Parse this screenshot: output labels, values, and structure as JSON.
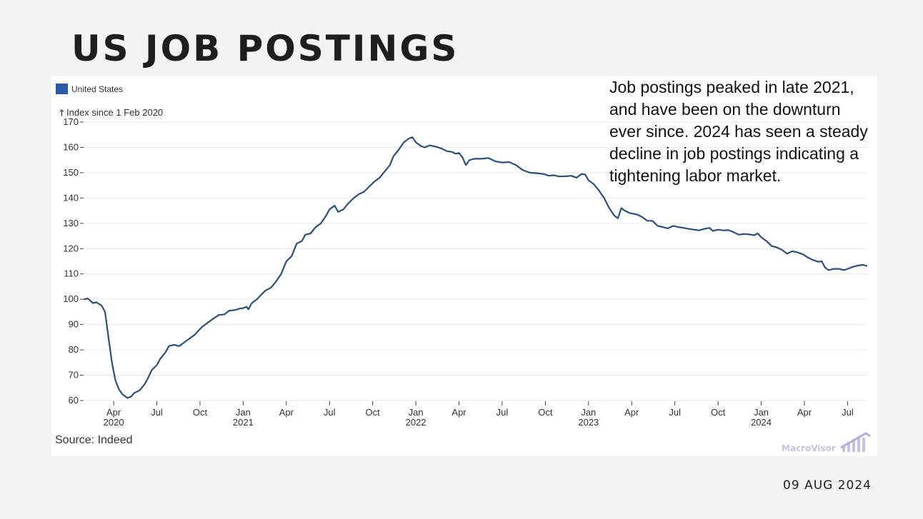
{
  "page": {
    "title": "US JOB POSTINGS",
    "date": "09 AUG 2024",
    "annotation": "Job postings peaked in late 2021, and have been on the downturn ever since. 2024 has seen a steady decline in job postings indicating a tightening labor market.",
    "watermark": "MacroVisor"
  },
  "chart_data": {
    "type": "line",
    "title": "",
    "ylabel": "Index since 1 Feb 2020",
    "xlabel": "",
    "source": "Source: Indeed",
    "legend": {
      "position": "top-left",
      "entries": [
        "United States"
      ]
    },
    "ylim": [
      60,
      170
    ],
    "yticks": [
      60,
      70,
      80,
      90,
      100,
      110,
      120,
      130,
      140,
      150,
      160,
      170
    ],
    "xlim": [
      2020.08,
      2024.61
    ],
    "xticks": [
      {
        "x": 2020.25,
        "label": "Apr",
        "sub": "2020"
      },
      {
        "x": 2020.5,
        "label": "Jul",
        "sub": ""
      },
      {
        "x": 2020.75,
        "label": "Oct",
        "sub": ""
      },
      {
        "x": 2021.0,
        "label": "Jan",
        "sub": "2021"
      },
      {
        "x": 2021.25,
        "label": "Apr",
        "sub": ""
      },
      {
        "x": 2021.5,
        "label": "Jul",
        "sub": ""
      },
      {
        "x": 2021.75,
        "label": "Oct",
        "sub": ""
      },
      {
        "x": 2022.0,
        "label": "Jan",
        "sub": "2022"
      },
      {
        "x": 2022.25,
        "label": "Apr",
        "sub": ""
      },
      {
        "x": 2022.5,
        "label": "Jul",
        "sub": ""
      },
      {
        "x": 2022.75,
        "label": "Oct",
        "sub": ""
      },
      {
        "x": 2023.0,
        "label": "Jan",
        "sub": "2023"
      },
      {
        "x": 2023.25,
        "label": "Apr",
        "sub": ""
      },
      {
        "x": 2023.5,
        "label": "Jul",
        "sub": ""
      },
      {
        "x": 2023.75,
        "label": "Oct",
        "sub": ""
      },
      {
        "x": 2024.0,
        "label": "Jan",
        "sub": "2024"
      },
      {
        "x": 2024.25,
        "label": "Apr",
        "sub": ""
      },
      {
        "x": 2024.5,
        "label": "Jul",
        "sub": ""
      }
    ],
    "grid": true,
    "series": [
      {
        "name": "United States",
        "color": "#2e4f78",
        "points": [
          [
            2020.08,
            100
          ],
          [
            2020.1,
            100.3
          ],
          [
            2020.13,
            98.5
          ],
          [
            2020.15,
            98.8
          ],
          [
            2020.18,
            97.5
          ],
          [
            2020.2,
            95
          ],
          [
            2020.22,
            85
          ],
          [
            2020.24,
            75
          ],
          [
            2020.26,
            68
          ],
          [
            2020.28,
            64.5
          ],
          [
            2020.3,
            62.5
          ],
          [
            2020.33,
            61
          ],
          [
            2020.35,
            61.5
          ],
          [
            2020.37,
            63
          ],
          [
            2020.4,
            64
          ],
          [
            2020.43,
            66.5
          ],
          [
            2020.45,
            69
          ],
          [
            2020.47,
            72
          ],
          [
            2020.5,
            74
          ],
          [
            2020.52,
            76.5
          ],
          [
            2020.55,
            79
          ],
          [
            2020.57,
            81.5
          ],
          [
            2020.6,
            82
          ],
          [
            2020.63,
            81.5
          ],
          [
            2020.65,
            82.5
          ],
          [
            2020.68,
            84
          ],
          [
            2020.72,
            86
          ],
          [
            2020.76,
            89
          ],
          [
            2020.8,
            91
          ],
          [
            2020.83,
            92.5
          ],
          [
            2020.86,
            93.8
          ],
          [
            2020.89,
            94
          ],
          [
            2020.92,
            95.5
          ],
          [
            2020.95,
            95.7
          ],
          [
            2020.98,
            96.3
          ],
          [
            2021.0,
            96.5
          ],
          [
            2021.02,
            97
          ],
          [
            2021.03,
            96
          ],
          [
            2021.05,
            98.5
          ],
          [
            2021.08,
            100
          ],
          [
            2021.1,
            101.5
          ],
          [
            2021.13,
            103.5
          ],
          [
            2021.16,
            104.5
          ],
          [
            2021.19,
            107
          ],
          [
            2021.22,
            110
          ],
          [
            2021.25,
            115
          ],
          [
            2021.28,
            117
          ],
          [
            2021.31,
            122
          ],
          [
            2021.34,
            123
          ],
          [
            2021.36,
            125.5
          ],
          [
            2021.39,
            126
          ],
          [
            2021.42,
            128.5
          ],
          [
            2021.45,
            130
          ],
          [
            2021.48,
            133
          ],
          [
            2021.5,
            135.5
          ],
          [
            2021.53,
            137
          ],
          [
            2021.55,
            134.5
          ],
          [
            2021.58,
            135.5
          ],
          [
            2021.61,
            138
          ],
          [
            2021.64,
            140
          ],
          [
            2021.67,
            141.5
          ],
          [
            2021.7,
            142.5
          ],
          [
            2021.73,
            144.5
          ],
          [
            2021.76,
            146.5
          ],
          [
            2021.79,
            148
          ],
          [
            2021.82,
            150.5
          ],
          [
            2021.85,
            153
          ],
          [
            2021.87,
            156.5
          ],
          [
            2021.9,
            159
          ],
          [
            2021.93,
            162
          ],
          [
            2021.96,
            163.5
          ],
          [
            2021.98,
            164
          ],
          [
            2022.0,
            162
          ],
          [
            2022.03,
            160.5
          ],
          [
            2022.05,
            160
          ],
          [
            2022.08,
            160.8
          ],
          [
            2022.12,
            160.2
          ],
          [
            2022.15,
            159.5
          ],
          [
            2022.18,
            158.5
          ],
          [
            2022.21,
            158.2
          ],
          [
            2022.23,
            157.5
          ],
          [
            2022.25,
            157.8
          ],
          [
            2022.27,
            156
          ],
          [
            2022.29,
            153
          ],
          [
            2022.31,
            155
          ],
          [
            2022.34,
            155.5
          ],
          [
            2022.38,
            155.5
          ],
          [
            2022.42,
            155.8
          ],
          [
            2022.46,
            154.5
          ],
          [
            2022.5,
            154
          ],
          [
            2022.54,
            154.2
          ],
          [
            2022.58,
            153
          ],
          [
            2022.62,
            151
          ],
          [
            2022.66,
            150
          ],
          [
            2022.7,
            149.8
          ],
          [
            2022.74,
            149.5
          ],
          [
            2022.77,
            148.8
          ],
          [
            2022.8,
            149
          ],
          [
            2022.83,
            148.5
          ],
          [
            2022.87,
            148.6
          ],
          [
            2022.9,
            148.8
          ],
          [
            2022.93,
            148
          ],
          [
            2022.96,
            149.5
          ],
          [
            2022.98,
            149.3
          ],
          [
            2023.0,
            147
          ],
          [
            2023.03,
            145.5
          ],
          [
            2023.06,
            143
          ],
          [
            2023.09,
            140
          ],
          [
            2023.12,
            136
          ],
          [
            2023.15,
            133
          ],
          [
            2023.17,
            132
          ],
          [
            2023.19,
            136
          ],
          [
            2023.21,
            135
          ],
          [
            2023.24,
            134
          ],
          [
            2023.28,
            133.5
          ],
          [
            2023.31,
            132.5
          ],
          [
            2023.34,
            131
          ],
          [
            2023.37,
            131
          ],
          [
            2023.4,
            129
          ],
          [
            2023.43,
            128.5
          ],
          [
            2023.46,
            128
          ],
          [
            2023.49,
            129
          ],
          [
            2023.52,
            128.5
          ],
          [
            2023.55,
            128.2
          ],
          [
            2023.58,
            127.8
          ],
          [
            2023.61,
            127.5
          ],
          [
            2023.64,
            127.2
          ],
          [
            2023.67,
            127.8
          ],
          [
            2023.7,
            128.2
          ],
          [
            2023.72,
            127
          ],
          [
            2023.75,
            127.5
          ],
          [
            2023.78,
            127.2
          ],
          [
            2023.81,
            127.3
          ],
          [
            2023.84,
            126.5
          ],
          [
            2023.87,
            125.5
          ],
          [
            2023.9,
            125.8
          ],
          [
            2023.93,
            125.6
          ],
          [
            2023.96,
            125.3
          ],
          [
            2023.98,
            126
          ],
          [
            2024.0,
            124.5
          ],
          [
            2024.03,
            123
          ],
          [
            2024.06,
            121
          ],
          [
            2024.09,
            120.5
          ],
          [
            2024.12,
            119.5
          ],
          [
            2024.15,
            118
          ],
          [
            2024.18,
            119
          ],
          [
            2024.21,
            118.5
          ],
          [
            2024.24,
            117.8
          ],
          [
            2024.27,
            116.5
          ],
          [
            2024.3,
            115.5
          ],
          [
            2024.33,
            114.8
          ],
          [
            2024.35,
            115
          ],
          [
            2024.37,
            112.5
          ],
          [
            2024.39,
            111.5
          ],
          [
            2024.42,
            112
          ],
          [
            2024.45,
            112
          ],
          [
            2024.48,
            111.5
          ],
          [
            2024.5,
            112
          ],
          [
            2024.53,
            112.8
          ],
          [
            2024.56,
            113.3
          ],
          [
            2024.59,
            113.6
          ],
          [
            2024.61,
            113.2
          ]
        ]
      }
    ]
  }
}
